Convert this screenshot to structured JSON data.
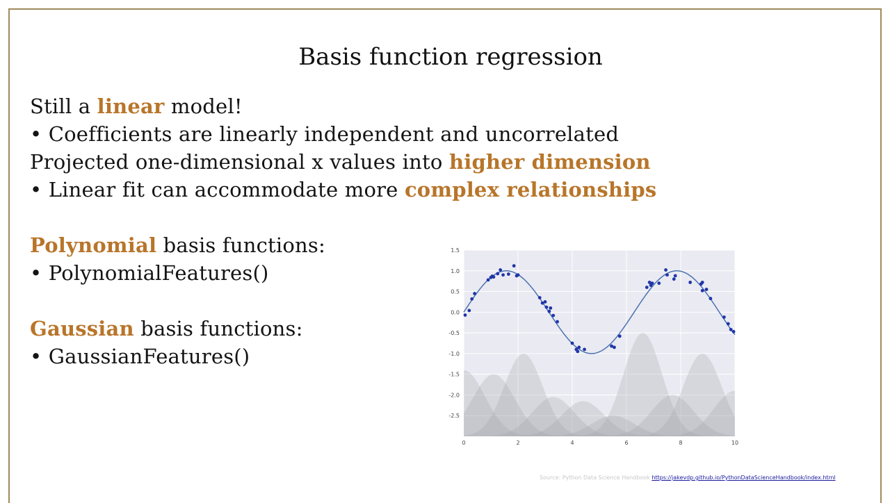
{
  "slide": {
    "title": "Basis function regression",
    "lines": [
      {
        "pre": "Still a ",
        "hl": "linear",
        "post": " model!"
      },
      {
        "pre": "• Coefficients are linearly independent and uncorrelated",
        "hl": "",
        "post": ""
      },
      {
        "pre": "Projected one-dimensional x values into ",
        "hl": "higher dimension",
        "post": ""
      },
      {
        "pre": "• Linear fit can accommodate more ",
        "hl": "complex relationships",
        "post": ""
      },
      {
        "pre": "",
        "hl": "Polynomial",
        "post": " basis functions:"
      },
      {
        "pre": "• PolynomialFeatures()",
        "hl": "",
        "post": ""
      },
      {
        "pre": "",
        "hl": "Gaussian",
        "post": " basis functions:"
      },
      {
        "pre": "• GaussianFeatures()",
        "hl": "",
        "post": ""
      }
    ],
    "highlight_color": "#b8752a",
    "source_text": "Source: Python Data Science  Handbook",
    "source_link": "https://jakevdp.github.io/PythonDataScienceHandbook/index.html"
  },
  "chart_data": {
    "type": "scatter",
    "title": "",
    "xlabel": "",
    "ylabel": "",
    "xlim": [
      0,
      10
    ],
    "ylim": [
      -3.0,
      1.5
    ],
    "xticks": [
      0,
      2,
      4,
      6,
      8,
      10
    ],
    "yticks": [
      1.5,
      1.0,
      0.5,
      0.0,
      -0.5,
      -1.0,
      -1.5,
      -2.0,
      -2.5
    ],
    "grid": true,
    "background": "#eaeaf2",
    "point_color": "#1f35a8",
    "line_color": "#4a72b0",
    "points": [
      [
        0.05,
        -0.07
      ],
      [
        0.2,
        0.04
      ],
      [
        0.3,
        0.32
      ],
      [
        0.4,
        0.45
      ],
      [
        0.9,
        0.78
      ],
      [
        1.0,
        0.84
      ],
      [
        1.05,
        0.87
      ],
      [
        1.1,
        0.85
      ],
      [
        1.25,
        0.93
      ],
      [
        1.35,
        1.02
      ],
      [
        1.45,
        0.9
      ],
      [
        1.65,
        0.92
      ],
      [
        1.85,
        1.12
      ],
      [
        1.95,
        0.88
      ],
      [
        2.0,
        0.9
      ],
      [
        2.8,
        0.35
      ],
      [
        2.9,
        0.22
      ],
      [
        3.0,
        0.25
      ],
      [
        3.05,
        0.12
      ],
      [
        3.15,
        0.02
      ],
      [
        3.2,
        0.1
      ],
      [
        3.3,
        -0.08
      ],
      [
        3.45,
        -0.23
      ],
      [
        4.0,
        -0.75
      ],
      [
        4.15,
        -0.9
      ],
      [
        4.2,
        -0.95
      ],
      [
        4.25,
        -0.85
      ],
      [
        4.45,
        -0.9
      ],
      [
        5.45,
        -0.82
      ],
      [
        5.55,
        -0.85
      ],
      [
        5.75,
        -0.58
      ],
      [
        6.75,
        0.6
      ],
      [
        6.85,
        0.72
      ],
      [
        6.9,
        0.65
      ],
      [
        6.95,
        0.7
      ],
      [
        7.2,
        0.7
      ],
      [
        7.45,
        1.02
      ],
      [
        7.5,
        0.9
      ],
      [
        7.75,
        0.8
      ],
      [
        7.8,
        0.88
      ],
      [
        8.35,
        0.72
      ],
      [
        8.75,
        0.68
      ],
      [
        8.8,
        0.72
      ],
      [
        8.8,
        0.52
      ],
      [
        8.95,
        0.55
      ],
      [
        9.1,
        0.33
      ],
      [
        9.6,
        -0.12
      ],
      [
        9.75,
        -0.28
      ],
      [
        9.85,
        -0.42
      ],
      [
        9.95,
        -0.47
      ]
    ],
    "gaussian_basis": [
      {
        "center": 0.0,
        "amplitude": 1.6,
        "width": 1.1
      },
      {
        "center": 1.1,
        "amplitude": 1.5,
        "width": 1.1
      },
      {
        "center": 2.2,
        "amplitude": 2.0,
        "width": 1.0
      },
      {
        "center": 3.3,
        "amplitude": 0.95,
        "width": 1.1
      },
      {
        "center": 4.4,
        "amplitude": 0.85,
        "width": 1.1
      },
      {
        "center": 5.5,
        "amplitude": 0.5,
        "width": 1.1
      },
      {
        "center": 6.6,
        "amplitude": 2.5,
        "width": 1.0
      },
      {
        "center": 7.7,
        "amplitude": 1.0,
        "width": 1.1
      },
      {
        "center": 8.8,
        "amplitude": 2.0,
        "width": 1.0
      },
      {
        "center": 10.0,
        "amplitude": 1.1,
        "width": 1.1
      }
    ]
  }
}
